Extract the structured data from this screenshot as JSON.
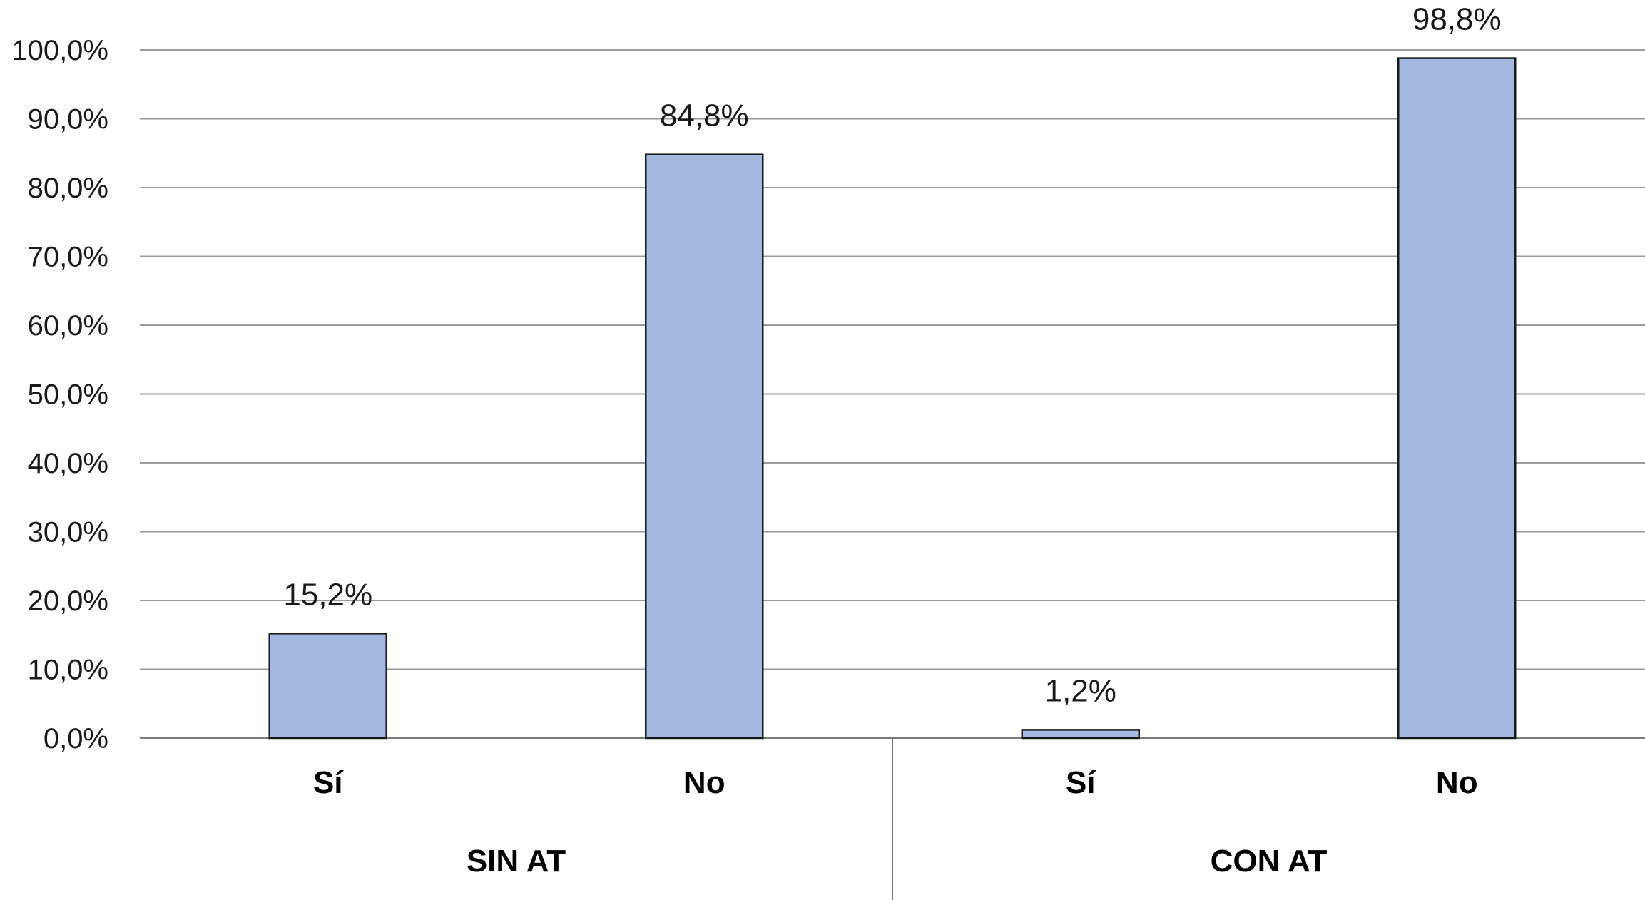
{
  "chart_data": {
    "type": "bar",
    "title": "",
    "xlabel": "",
    "ylabel": "",
    "ylim": [
      0,
      100
    ],
    "yticks": [
      0,
      10,
      20,
      30,
      40,
      50,
      60,
      70,
      80,
      90,
      100
    ],
    "ytick_labels": [
      "0,0%",
      "10,0%",
      "20,0%",
      "30,0%",
      "40,0%",
      "50,0%",
      "60,0%",
      "70,0%",
      "80,0%",
      "90,0%",
      "100,0%"
    ],
    "grid": true,
    "legend": "none",
    "groups": [
      {
        "label": "SIN AT",
        "categories": [
          "Sí",
          "No"
        ],
        "values": [
          15.2,
          84.8
        ],
        "value_labels": [
          "15,2%",
          "84,8%"
        ]
      },
      {
        "label": "CON AT",
        "categories": [
          "Sí",
          "No"
        ],
        "values": [
          1.2,
          98.8
        ],
        "value_labels": [
          "1,2%",
          "98,8%"
        ]
      }
    ],
    "colors": {
      "bar_fill": "#a3b9e0",
      "bar_stroke": "#1a1a1a",
      "grid": "#9a9a9a",
      "axis": "#7a7a7a"
    }
  }
}
